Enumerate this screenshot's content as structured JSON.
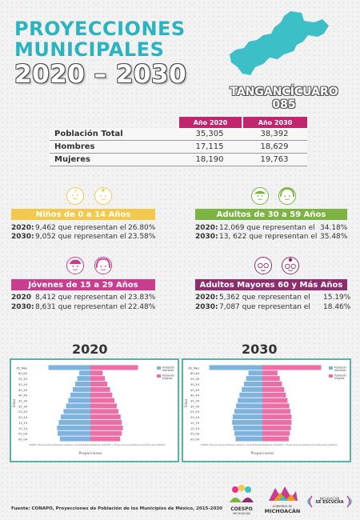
{
  "title": {
    "line1": "PROYECCIONES",
    "line2": "MUNICIPALES",
    "line3": "2020 – 2030"
  },
  "municipality": {
    "name": "TANGANCÍCUARO",
    "code": "085"
  },
  "table": {
    "headers": [
      "Año 2020",
      "Año 2030"
    ],
    "rows": [
      {
        "label": "Población Total",
        "v2020": "35,305",
        "v2030": "38,392"
      },
      {
        "label": "Hombres",
        "v2020": "17,115",
        "v2030": "18,629"
      },
      {
        "label": "Mujeres",
        "v2020": "18,190",
        "v2030": "19,763"
      }
    ]
  },
  "groups": {
    "ninos": {
      "title": "Niños de 0 a 14 Años",
      "color": "#f2c94c",
      "rows": [
        {
          "year": "2020:",
          "text": "9,462 que representan el",
          "pct": "26.80%"
        },
        {
          "year": "2030:",
          "text": "9,052 que representan el",
          "pct": "23.58%"
        }
      ]
    },
    "adultos": {
      "title": "Adultos de 30 a 59 Años",
      "color": "#7cb342",
      "rows": [
        {
          "year": "2020:",
          "text": "12,069 que representan el",
          "pct": "34.18%"
        },
        {
          "year": "2030:",
          "text": "13, 622 que representan el",
          "pct": "35.48%"
        }
      ]
    },
    "jovenes": {
      "title": "Jóvenes de 15 a 29 Años",
      "color": "#c83d8e",
      "rows": [
        {
          "year": "2020",
          "text": "8,412 que representan el",
          "pct": "23.83%"
        },
        {
          "year": "2030:",
          "text": "8,631 que representan el",
          "pct": "22.48%"
        }
      ]
    },
    "mayores": {
      "title": "Adultos Mayores  60 y Más Años",
      "color": "#8e2d6d",
      "rows": [
        {
          "year": "2020:",
          "text": "5,362 que representan el",
          "pct": "15.19%"
        },
        {
          "year": "2030:",
          "text": "7,087 que representan el",
          "pct": "18.46%"
        }
      ]
    }
  },
  "pyramids": {
    "year_a": "2020",
    "year_b": "2030"
  },
  "chart_data": [
    {
      "type": "bar",
      "title": "2020",
      "categories": [
        "00_04",
        "05_09",
        "10_14",
        "15_19",
        "20_24",
        "25_29",
        "30_34",
        "35_39",
        "40_44",
        "45_49",
        "50_54",
        "55_59",
        "60_64",
        "65_Más"
      ],
      "series": [
        {
          "name": "Población Hombres",
          "values": [
            0.0545,
            0.0585,
            0.0595,
            0.0565,
            0.053,
            0.048,
            0.0435,
            0.0395,
            0.036,
            0.0315,
            0.027,
            0.0235,
            0.02,
            0.075
          ]
        },
        {
          "name": "Población Mujeres",
          "values": [
            0.053,
            0.056,
            0.058,
            0.056,
            0.054,
            0.05,
            0.047,
            0.043,
            0.039,
            0.035,
            0.03,
            0.026,
            0.022,
            0.085
          ]
        }
      ],
      "xlabel": "Proporciones",
      "ylabel": "Edad",
      "legend": "top-right",
      "colors": [
        "#7fb2dc",
        "#e96fa6"
      ]
    },
    {
      "type": "bar",
      "title": "2030",
      "categories": [
        "00_04",
        "05_09",
        "10_14",
        "15_19",
        "20_24",
        "25_29",
        "30_34",
        "35_39",
        "40_44",
        "45_49",
        "50_54",
        "55_59",
        "60_64",
        "65_Más"
      ],
      "series": [
        {
          "name": "Población Hombres",
          "values": [
            0.048,
            0.05,
            0.052,
            0.054,
            0.053,
            0.05,
            0.047,
            0.044,
            0.041,
            0.037,
            0.033,
            0.029,
            0.025,
            0.095
          ]
        },
        {
          "name": "Población Mujeres",
          "values": [
            0.047,
            0.049,
            0.051,
            0.052,
            0.052,
            0.05,
            0.048,
            0.045,
            0.042,
            0.039,
            0.035,
            0.031,
            0.027,
            0.105
          ]
        }
      ],
      "xlabel": "Proporciones",
      "ylabel": "Edad",
      "legend": "top-right",
      "colors": [
        "#7fb2dc",
        "#e96fa6"
      ]
    }
  ],
  "pyramid_text": {
    "legend_male": "Población Hombres",
    "legend_female": "Población Mujeres",
    "xlabel": "Proporciones",
    "ylabel": "Edad",
    "source": "CONAPO, \"Proyecciones de la Población de México y de las Entidades Federativas, 2016-2050\" y \"Proyecciones de la Población de los Municipios de México\""
  },
  "footer": {
    "source": "Fuente: CONAPO, Proyecciones de Población de los Municipios de México, 2015-2030",
    "logo1": "COESPO",
    "logo1_sub": "MICHOACÁN",
    "logo2_top": "GOBIERNO DE",
    "logo2": "MICHOACÁN",
    "logo3_line1": "MICHOACÁN",
    "logo3_line2": "SE ESCUCHA"
  }
}
